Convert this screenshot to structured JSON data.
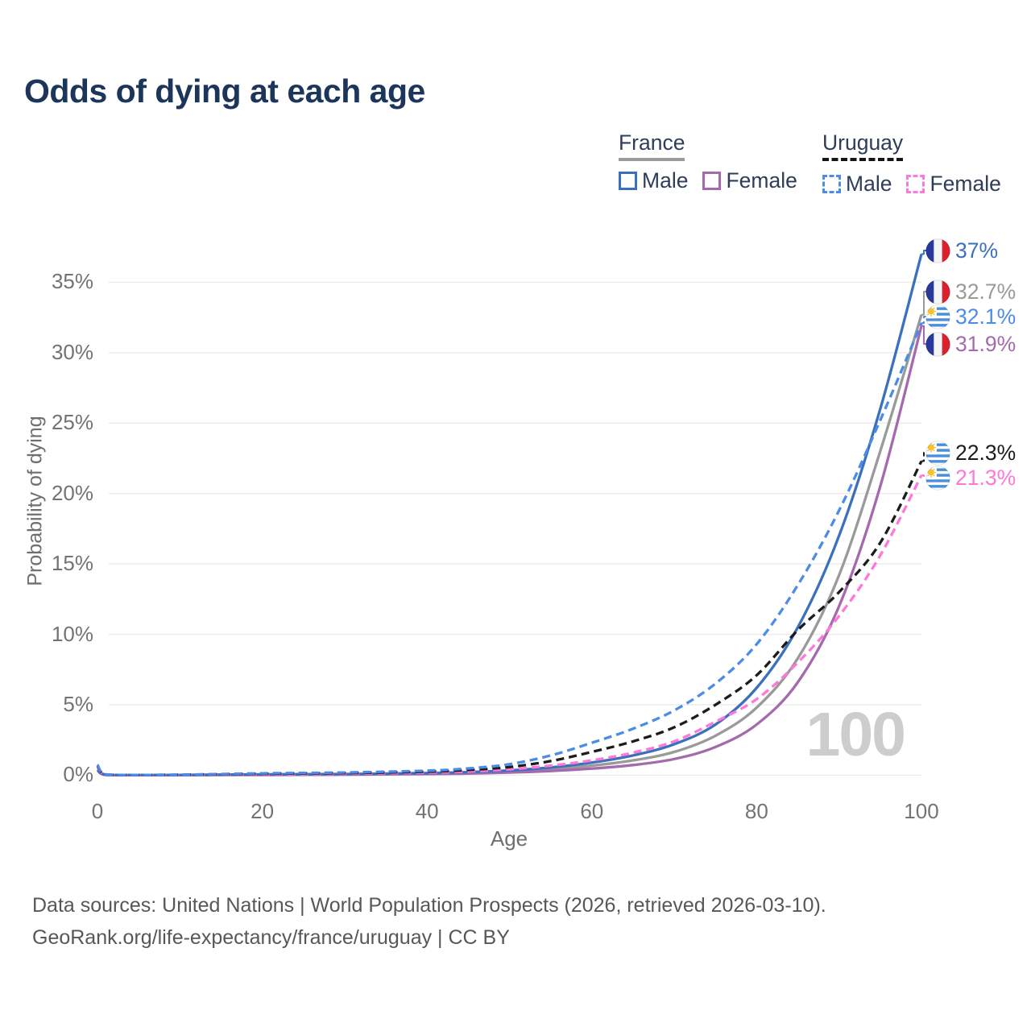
{
  "title": "Odds of dying at each age",
  "watermark": {
    "text": "100"
  },
  "colors": {
    "title": "#1c355a",
    "france_male": "#3b70bd",
    "france_female": "#a569ae",
    "france_total": "#9a9a9a",
    "uruguay_male": "#4b8ce8",
    "uruguay_female": "#ff77d9",
    "uruguay_total": "#1c1c1c",
    "gridline": "#ebebeb"
  },
  "legend": {
    "groups": [
      {
        "country": "France",
        "style": "solid",
        "rule_color": "#9a9a9a",
        "items": [
          {
            "label": "Male",
            "color": "#3b70bd",
            "dashed": false
          },
          {
            "label": "Female",
            "color": "#a569ae",
            "dashed": false
          }
        ]
      },
      {
        "country": "Uruguay",
        "style": "dashed",
        "rule_color": "#151515",
        "items": [
          {
            "label": "Male",
            "color": "#4b8ce8",
            "dashed": true
          },
          {
            "label": "Female",
            "color": "#ff77d9",
            "dashed": true
          }
        ]
      }
    ]
  },
  "chart_data": {
    "type": "line",
    "title": "Odds of dying at each age",
    "xlabel": "Age",
    "ylabel": "Probability of dying",
    "xlim": [
      0,
      100
    ],
    "ylim": [
      0,
      37
    ],
    "grid": true,
    "legend_position": "top-right",
    "x_ticks": [
      {
        "value": 0,
        "label": "0"
      },
      {
        "value": 20,
        "label": "20"
      },
      {
        "value": 40,
        "label": "40"
      },
      {
        "value": 60,
        "label": "60"
      },
      {
        "value": 80,
        "label": "80"
      },
      {
        "value": 100,
        "label": "100"
      }
    ],
    "y_ticks": [
      {
        "value": 0,
        "label": "0%"
      },
      {
        "value": 5,
        "label": "5%"
      },
      {
        "value": 10,
        "label": "10%"
      },
      {
        "value": 15,
        "label": "15%"
      },
      {
        "value": 20,
        "label": "20%"
      },
      {
        "value": 25,
        "label": "25%"
      },
      {
        "value": 30,
        "label": "30%"
      },
      {
        "value": 35,
        "label": "35%"
      }
    ],
    "x": [
      0,
      1,
      5,
      10,
      20,
      30,
      40,
      45,
      50,
      55,
      60,
      65,
      70,
      75,
      80,
      85,
      90,
      95,
      100
    ],
    "series": [
      {
        "id": "france-total",
        "country": "France",
        "sex": "Both",
        "flag": "france",
        "color": "#9a9a9a",
        "dashed": false,
        "end_label": "32.7%",
        "values": [
          0.36,
          0.03,
          0.01,
          0.01,
          0.04,
          0.06,
          0.11,
          0.17,
          0.26,
          0.42,
          0.68,
          1.05,
          1.65,
          2.8,
          4.8,
          8.3,
          14.2,
          23.0,
          32.7
        ]
      },
      {
        "id": "france-female",
        "country": "France",
        "sex": "Female",
        "flag": "france",
        "color": "#a569ae",
        "dashed": false,
        "end_label": "31.9%",
        "values": [
          0.33,
          0.02,
          0.01,
          0.01,
          0.02,
          0.04,
          0.08,
          0.12,
          0.19,
          0.3,
          0.47,
          0.72,
          1.15,
          2.0,
          3.6,
          6.6,
          12.0,
          20.5,
          31.9
        ]
      },
      {
        "id": "france-male",
        "country": "France",
        "sex": "Male",
        "flag": "france",
        "color": "#3b70bd",
        "dashed": false,
        "end_label": "37%",
        "values": [
          0.4,
          0.04,
          0.01,
          0.01,
          0.06,
          0.08,
          0.15,
          0.22,
          0.34,
          0.55,
          0.9,
          1.4,
          2.2,
          3.6,
          6.2,
          10.5,
          17.0,
          26.0,
          37.0
        ]
      },
      {
        "id": "uruguay-female",
        "country": "Uruguay",
        "sex": "Female",
        "flag": "uruguay",
        "color": "#ff77d9",
        "dashed": true,
        "end_label": "21.3%",
        "values": [
          0.6,
          0.04,
          0.02,
          0.02,
          0.06,
          0.1,
          0.18,
          0.26,
          0.42,
          0.68,
          1.05,
          1.6,
          2.4,
          3.8,
          5.4,
          8.0,
          11.3,
          15.6,
          21.3
        ]
      },
      {
        "id": "uruguay-total",
        "country": "Uruguay",
        "sex": "Both",
        "flag": "uruguay",
        "color": "#1c1c1c",
        "dashed": true,
        "end_label": "22.3%",
        "values": [
          0.68,
          0.05,
          0.02,
          0.03,
          0.1,
          0.15,
          0.25,
          0.37,
          0.58,
          1.0,
          1.65,
          2.4,
          3.4,
          5.0,
          7.1,
          10.3,
          13.0,
          16.5,
          22.3
        ]
      },
      {
        "id": "uruguay-male",
        "country": "Uruguay",
        "sex": "Male",
        "flag": "uruguay",
        "color": "#4b8ce8",
        "dashed": true,
        "end_label": "32.1%",
        "values": [
          0.75,
          0.06,
          0.02,
          0.03,
          0.13,
          0.19,
          0.32,
          0.48,
          0.78,
          1.4,
          2.3,
          3.3,
          4.6,
          6.5,
          9.3,
          13.5,
          18.8,
          25.2,
          32.1
        ]
      }
    ]
  },
  "footer": {
    "line1": "Data sources: United Nations | World Population Prospects (2026, retrieved 2026-03-10).",
    "line2": "GeoRank.org/life-expectancy/france/uruguay | CC BY"
  }
}
